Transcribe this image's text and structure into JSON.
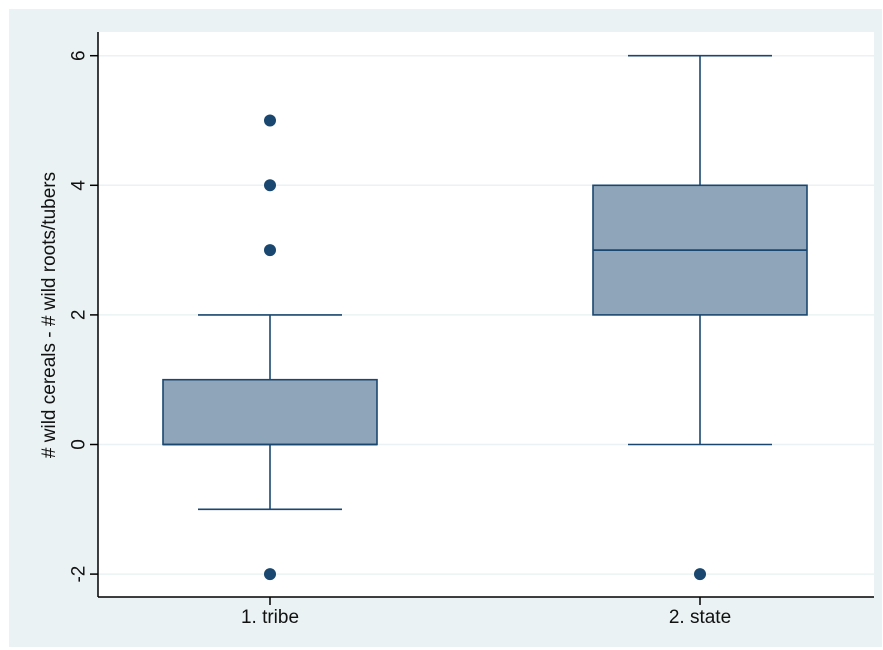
{
  "chart_data": {
    "type": "box",
    "ylabel": "# wild cereals - # wild roots/tubers",
    "xlabel": "",
    "ylim": [
      -2.35,
      6.7
    ],
    "yticks": [
      -2,
      0,
      2,
      4,
      6
    ],
    "ytick_labels": [
      "-2",
      "0",
      "2",
      "4",
      "6"
    ],
    "grid": true,
    "categories": [
      "1. tribe",
      "2. state"
    ],
    "boxes": [
      {
        "category": "1. tribe",
        "whisker_low": -1,
        "q1": 0,
        "median": 0,
        "q3": 1,
        "whisker_high": 2,
        "outliers": [
          -2,
          3,
          4,
          5
        ]
      },
      {
        "category": "2. state",
        "whisker_low": 0,
        "q1": 2,
        "median": 3,
        "q3": 4,
        "whisker_high": 6,
        "outliers": [
          -2
        ]
      }
    ],
    "colors": {
      "box_fill": "#8fa5b9",
      "box_line": "#1a476f",
      "background": "#eaf2f3",
      "plot_bg": "#ffffff",
      "grid": "#eaf2f3"
    }
  }
}
